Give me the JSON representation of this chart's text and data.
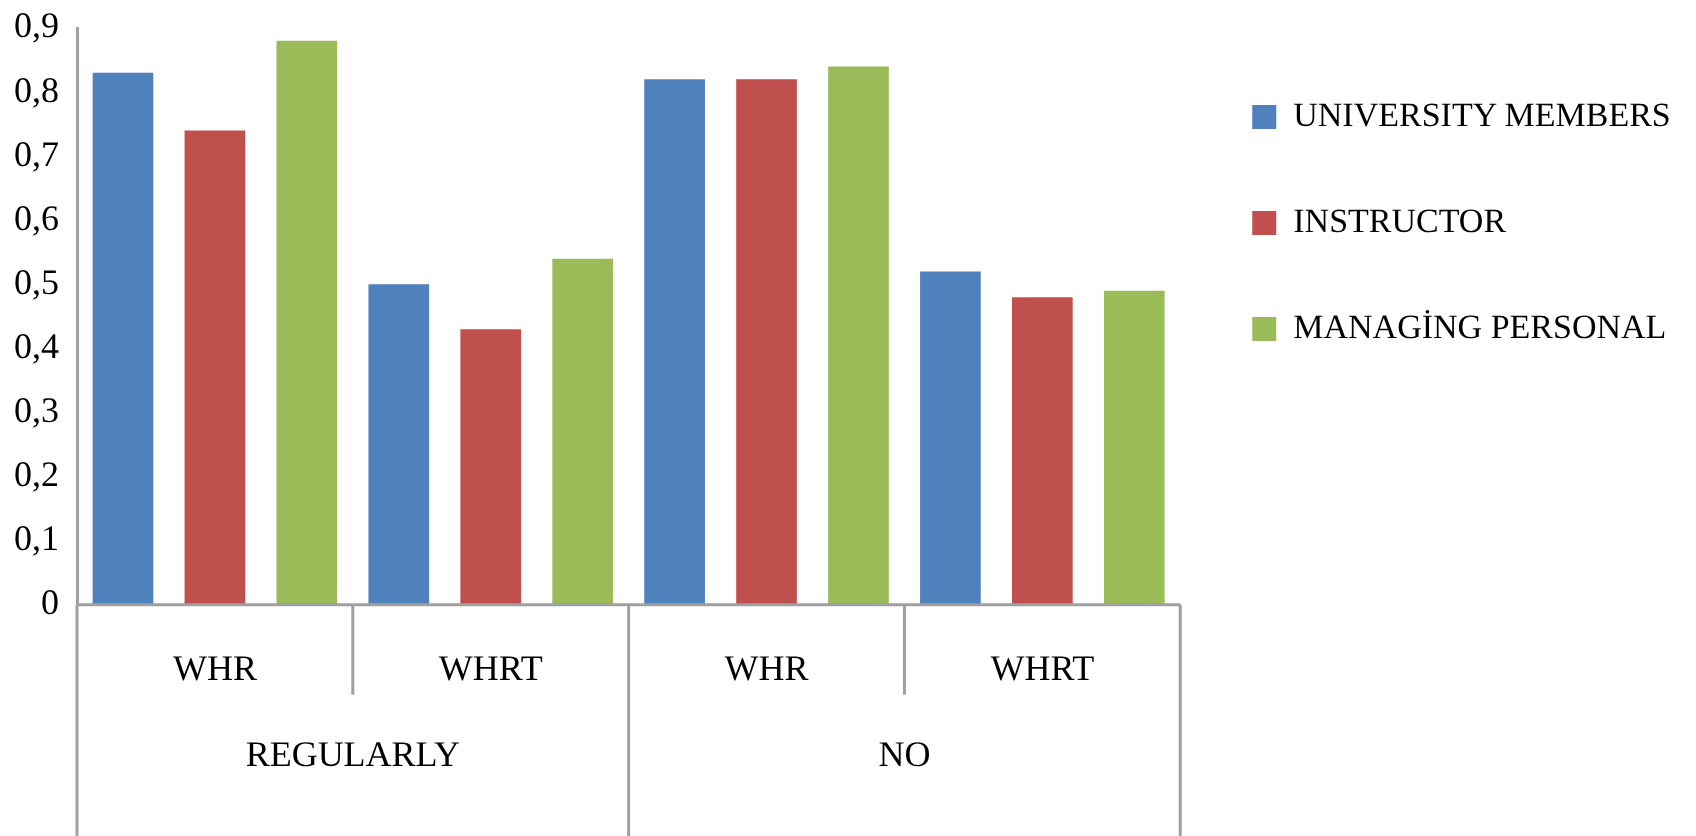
{
  "chart_data": {
    "type": "bar",
    "categories": [
      "WHR",
      "WHRT",
      "WHR",
      "WHRT"
    ],
    "series": [
      {
        "name": "UNIVERSITY MEMBERS",
        "color": "#4f81bd",
        "values": [
          0.83,
          0.5,
          0.82,
          0.52
        ]
      },
      {
        "name": "INSTRUCTOR",
        "color": "#c0504d",
        "values": [
          0.74,
          0.43,
          0.82,
          0.48
        ]
      },
      {
        "name": "MANAGİNG PERSONAL",
        "color": "#9bbb59",
        "values": [
          0.88,
          0.54,
          0.84,
          0.49
        ]
      }
    ],
    "annotations": [
      "REGULARLY",
      "NO"
    ],
    "ylim": [
      0,
      0.9
    ],
    "yticks": [
      {
        "value": 0,
        "label": "0"
      },
      {
        "value": 0.1,
        "label": "0,1"
      },
      {
        "value": 0.2,
        "label": "0,2"
      },
      {
        "value": 0.3,
        "label": "0,3"
      },
      {
        "value": 0.4,
        "label": "0,4"
      },
      {
        "value": 0.5,
        "label": "0,5"
      },
      {
        "value": 0.6,
        "label": "0,6"
      },
      {
        "value": 0.7,
        "label": "0,7"
      },
      {
        "value": 0.8,
        "label": "0,8"
      },
      {
        "value": 0.9,
        "label": "0,9"
      }
    ],
    "grid": false,
    "legend": "right"
  }
}
